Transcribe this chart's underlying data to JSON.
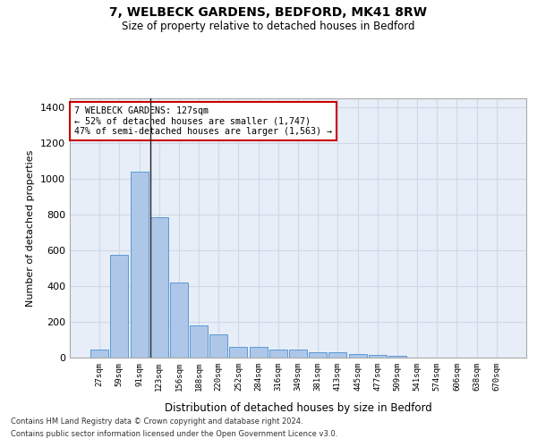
{
  "title_line1": "7, WELBECK GARDENS, BEDFORD, MK41 8RW",
  "title_line2": "Size of property relative to detached houses in Bedford",
  "xlabel": "Distribution of detached houses by size in Bedford",
  "ylabel": "Number of detached properties",
  "categories": [
    "27sqm",
    "59sqm",
    "91sqm",
    "123sqm",
    "156sqm",
    "188sqm",
    "220sqm",
    "252sqm",
    "284sqm",
    "316sqm",
    "349sqm",
    "381sqm",
    "413sqm",
    "445sqm",
    "477sqm",
    "509sqm",
    "541sqm",
    "574sqm",
    "606sqm",
    "638sqm",
    "670sqm"
  ],
  "values": [
    45,
    575,
    1040,
    785,
    420,
    180,
    130,
    60,
    60,
    45,
    45,
    28,
    28,
    20,
    15,
    10,
    0,
    0,
    0,
    0,
    0
  ],
  "bar_color": "#aec6e8",
  "bar_edge_color": "#5b9bd5",
  "vline_index": 3,
  "annotation_text_line1": "7 WELBECK GARDENS: 127sqm",
  "annotation_text_line2": "← 52% of detached houses are smaller (1,747)",
  "annotation_text_line3": "47% of semi-detached houses are larger (1,563) →",
  "annotation_box_facecolor": "#ffffff",
  "annotation_box_edgecolor": "#cc0000",
  "ylim": [
    0,
    1450
  ],
  "yticks": [
    0,
    200,
    400,
    600,
    800,
    1000,
    1200,
    1400
  ],
  "grid_color": "#d0d8e8",
  "bg_color": "#e8eef8",
  "footer_line1": "Contains HM Land Registry data © Crown copyright and database right 2024.",
  "footer_line2": "Contains public sector information licensed under the Open Government Licence v3.0."
}
